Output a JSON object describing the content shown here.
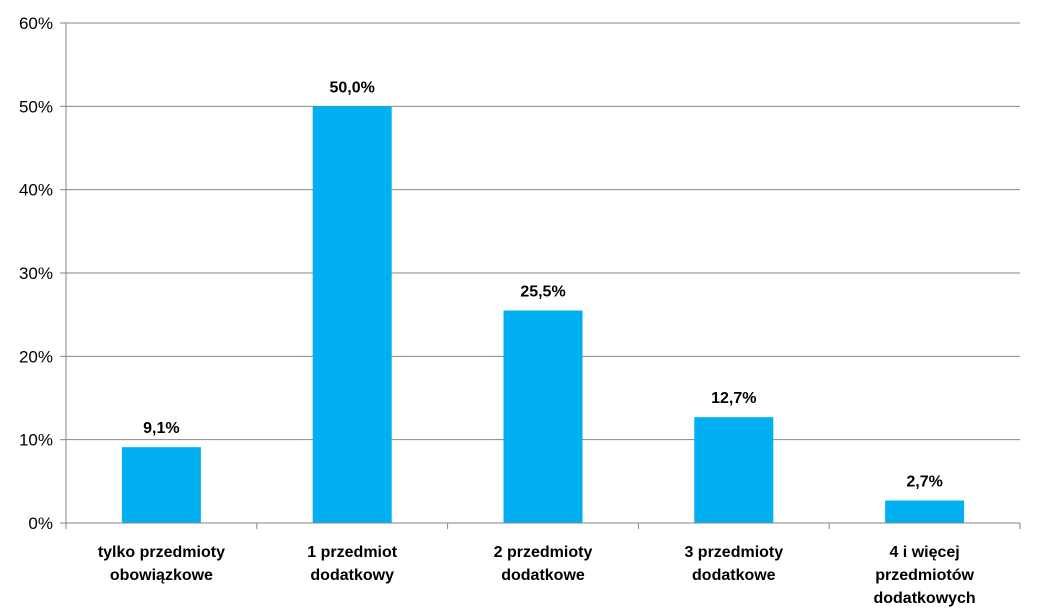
{
  "chart_data": {
    "type": "bar",
    "categories": [
      [
        "tylko przedmioty",
        "obowiązkowe"
      ],
      [
        "1 przedmiot",
        "dodatkowy"
      ],
      [
        "2 przedmioty",
        "dodatkowe"
      ],
      [
        "3 przedmioty",
        "dodatkowe"
      ],
      [
        "4 i więcej",
        "przedmiotów",
        "dodatkowych"
      ]
    ],
    "values": [
      9.1,
      50.0,
      25.5,
      12.7,
      2.7
    ],
    "data_labels": [
      "9,1%",
      "50,0%",
      "25,5%",
      "12,7%",
      "2,7%"
    ],
    "yticks": [
      "0%",
      "10%",
      "20%",
      "30%",
      "40%",
      "50%",
      "60%"
    ],
    "ylim": [
      0,
      60
    ],
    "title": "",
    "xlabel": "",
    "ylabel": "",
    "grid": true,
    "legend": false,
    "bar_color": "#00b0f0",
    "grid_color": "#868686"
  }
}
